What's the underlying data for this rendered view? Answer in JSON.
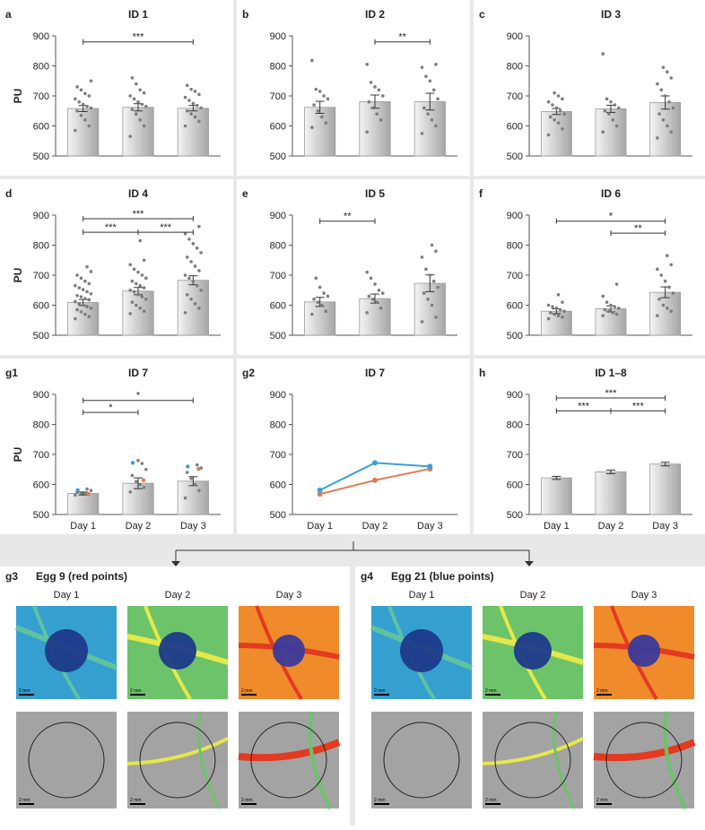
{
  "colors": {
    "panel_bg": "#e8e8e8",
    "bar_light": "#f4f4f4",
    "bar_dark": "#a6a6a6",
    "point": "#7d7d7d",
    "red": "#e07b55",
    "blue": "#3aa0d8"
  },
  "common": {
    "ylabel": "PU",
    "yticks": [
      500,
      600,
      700,
      800,
      900
    ],
    "categories": [
      "Day 1",
      "Day 2",
      "Day 3"
    ],
    "ylim": [
      500,
      900
    ]
  },
  "chart_data": [
    {
      "panel": "a",
      "title": "ID 1",
      "type": "bar",
      "values": [
        658,
        662,
        659
      ],
      "errors": [
        10,
        12,
        9
      ],
      "points": [
        [
          585,
          600,
          620,
          635,
          650,
          660,
          665,
          672,
          680,
          690,
          700,
          708,
          720,
          730,
          750
        ],
        [
          565,
          600,
          620,
          640,
          655,
          665,
          672,
          680,
          690,
          700,
          710,
          720,
          740,
          760
        ],
        [
          600,
          615,
          630,
          640,
          650,
          660,
          668,
          675,
          685,
          695,
          705,
          715,
          722,
          735
        ]
      ],
      "sig": [
        {
          "from": 0,
          "to": 2,
          "y": 880,
          "label": "***"
        }
      ]
    },
    {
      "panel": "b",
      "title": "ID 2",
      "type": "bar",
      "values": [
        662,
        681,
        681
      ],
      "errors": [
        20,
        22,
        28
      ],
      "points": [
        [
          595,
          610,
          630,
          650,
          670,
          690,
          700,
          715,
          722,
          818
        ],
        [
          580,
          620,
          640,
          660,
          680,
          700,
          720,
          730,
          745,
          805
        ],
        [
          575,
          600,
          620,
          640,
          660,
          690,
          720,
          750,
          765,
          795,
          805
        ]
      ],
      "sig": [
        {
          "from": 1,
          "to": 2,
          "y": 880,
          "label": "**"
        }
      ]
    },
    {
      "panel": "c",
      "title": "ID 3",
      "type": "bar",
      "values": [
        648,
        657,
        678
      ],
      "errors": [
        10,
        12,
        22
      ],
      "points": [
        [
          570,
          590,
          610,
          620,
          630,
          640,
          650,
          660,
          670,
          680,
          690,
          700,
          710
        ],
        [
          580,
          600,
          620,
          640,
          650,
          660,
          670,
          680,
          690,
          840
        ],
        [
          560,
          580,
          600,
          620,
          640,
          660,
          680,
          700,
          720,
          740,
          760,
          780,
          795
        ]
      ],
      "sig": []
    },
    {
      "panel": "d",
      "title": "ID 4",
      "type": "bar",
      "values": [
        609,
        647,
        683
      ],
      "errors": [
        10,
        12,
        15
      ],
      "points": [
        [
          555,
          562,
          570,
          578,
          585,
          590,
          595,
          600,
          605,
          612,
          618,
          622,
          628,
          632,
          638,
          645,
          652,
          658,
          665,
          672,
          680,
          690,
          700,
          712,
          728
        ],
        [
          572,
          580,
          590,
          600,
          610,
          620,
          628,
          635,
          645,
          650,
          658,
          665,
          672,
          680,
          690,
          700,
          710,
          720,
          735,
          750,
          815
        ],
        [
          575,
          590,
          605,
          620,
          635,
          650,
          665,
          680,
          690,
          700,
          715,
          730,
          745,
          760,
          775,
          790,
          805,
          820,
          838,
          862
        ]
      ],
      "sig": [
        {
          "from": 0,
          "to": 1,
          "y": 843,
          "label": "***"
        },
        {
          "from": 1,
          "to": 2,
          "y": 843,
          "label": "***"
        },
        {
          "from": 0,
          "to": 2,
          "y": 888,
          "label": "***"
        }
      ]
    },
    {
      "panel": "e",
      "title": "ID 5",
      "type": "bar",
      "values": [
        611,
        622,
        673
      ],
      "errors": [
        15,
        15,
        28
      ],
      "points": [
        [
          570,
          580,
          600,
          610,
          620,
          630,
          640,
          660,
          690
        ],
        [
          575,
          590,
          610,
          620,
          630,
          640,
          650,
          670,
          690,
          710
        ],
        [
          545,
          560,
          600,
          620,
          640,
          660,
          680,
          700,
          720,
          760,
          780,
          800
        ]
      ],
      "sig": [
        {
          "from": 0,
          "to": 1,
          "y": 880,
          "label": "**"
        }
      ]
    },
    {
      "panel": "f",
      "title": "ID 6",
      "type": "bar",
      "values": [
        580,
        588,
        643
      ],
      "errors": [
        8,
        10,
        18
      ],
      "points": [
        [
          555,
          560,
          565,
          570,
          575,
          580,
          585,
          590,
          595,
          600,
          610,
          635
        ],
        [
          565,
          570,
          575,
          580,
          585,
          590,
          595,
          600,
          610,
          630,
          670
        ],
        [
          565,
          580,
          590,
          600,
          620,
          640,
          660,
          680,
          700,
          720,
          735,
          765
        ]
      ],
      "sig": [
        {
          "from": 1,
          "to": 2,
          "y": 840,
          "label": "**"
        },
        {
          "from": 0,
          "to": 2,
          "y": 880,
          "label": "*"
        }
      ]
    },
    {
      "panel": "g1",
      "title": "ID 7",
      "type": "bar",
      "values": [
        570,
        604,
        611
      ],
      "errors": [
        5,
        18,
        15
      ],
      "points": [
        [
          565,
          568,
          570,
          572,
          575,
          580,
          585
        ],
        [
          575,
          590,
          600,
          610,
          630,
          650,
          670,
          680
        ],
        [
          555,
          580,
          600,
          620,
          640,
          655,
          665
        ]
      ],
      "red_points": [
        568,
        614,
        652
      ],
      "blue_points": [
        581,
        672,
        660
      ],
      "sig": [
        {
          "from": 0,
          "to": 1,
          "y": 840,
          "label": "*"
        },
        {
          "from": 0,
          "to": 2,
          "y": 880,
          "label": "*"
        }
      ]
    },
    {
      "panel": "g2",
      "title": "ID 7",
      "type": "line",
      "series": [
        {
          "name": "Egg 9 (red points)",
          "color": "#e07b55",
          "values": [
            568,
            614,
            652
          ]
        },
        {
          "name": "Egg 21 (blue points)",
          "color": "#3aa0d8",
          "values": [
            581,
            672,
            660
          ]
        }
      ],
      "sig": []
    },
    {
      "panel": "h",
      "title": "ID 1–8",
      "type": "bar",
      "values": [
        622,
        642,
        668
      ],
      "errors": [
        5,
        6,
        6
      ],
      "points": [],
      "sig": [
        {
          "from": 0,
          "to": 1,
          "y": 845,
          "label": "***"
        },
        {
          "from": 1,
          "to": 2,
          "y": 845,
          "label": "***"
        },
        {
          "from": 0,
          "to": 2,
          "y": 888,
          "label": "***"
        }
      ]
    }
  ],
  "image_panels": [
    {
      "label": "g3",
      "title": "Egg 9 (red points)",
      "days": [
        "Day 1",
        "Day 2",
        "Day 3"
      ],
      "scale": "2 mm"
    },
    {
      "label": "g4",
      "title": "Egg 21 (blue points)",
      "days": [
        "Day 1",
        "Day 2",
        "Day 3"
      ],
      "scale": "2 mm"
    }
  ]
}
